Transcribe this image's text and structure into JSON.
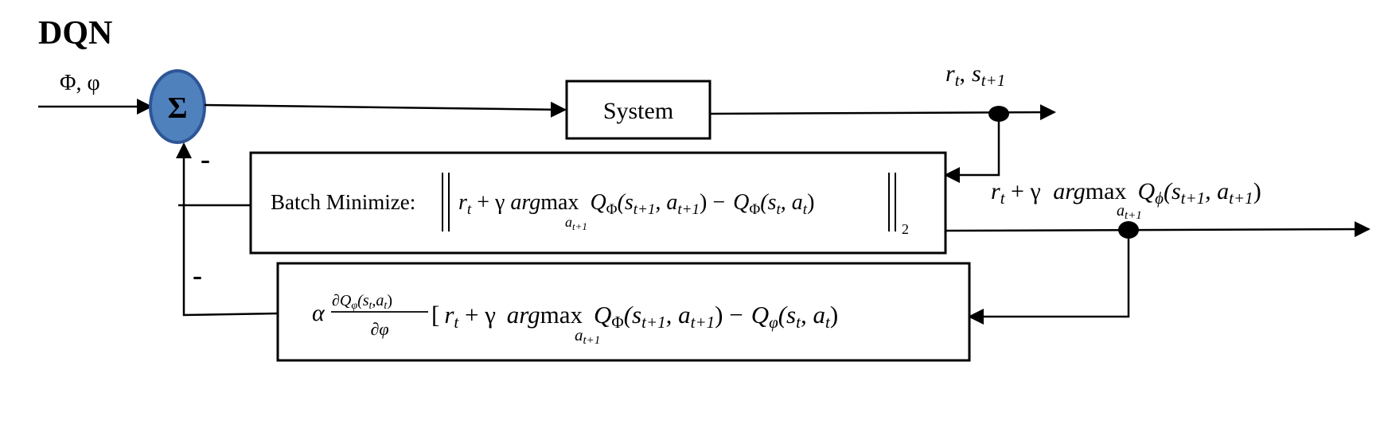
{
  "title": "DQN",
  "inputs": {
    "label": "Φ, φ"
  },
  "summer": {
    "symbol": "Σ",
    "fill": "#4f81bd",
    "stroke": "#2f5597"
  },
  "signs": {
    "batch": "-",
    "grad": "-"
  },
  "system": {
    "label": "System"
  },
  "output_top": {
    "r": "r",
    "t": "t",
    "s": "s",
    "t1": "t+1",
    "comma": ","
  },
  "target": {
    "r": "r",
    "t": "t",
    "plus_gamma": " + γ ",
    "argmax": "arg",
    "max": "max",
    "a": "a",
    "a_sub": "t+1",
    "q": "Q",
    "q_sub": "ϕ",
    "args": "(s",
    "args_sub1": "t+1",
    "args_mid": ", a",
    "args_sub2": "t+1",
    "close": ")"
  },
  "batch": {
    "label": "Batch Minimize:",
    "r": "r",
    "t": "t",
    "plus_gamma": " + γ ",
    "argmax": "arg",
    "max": "max",
    "a": "a",
    "a_sub": "t+1",
    "q1": "Q",
    "q1_sub": "Φ",
    "p1": "(s",
    "p1_sub": "t+1",
    "p1_mid": ", a",
    "p1_sub2": "t+1",
    "p1_close": ") −",
    "q2": "Q",
    "q2_sub": "Φ",
    "p2": "(s",
    "p2_sub": "t",
    "p2_mid": ", a",
    "p2_sub2": "t",
    "p2_close": ")",
    "norm_sub": "2"
  },
  "grad": {
    "alpha": "α",
    "num": "∂Q",
    "num_sub": "φ",
    "num_args": "(s",
    "num_args_sub1": "t",
    "num_args_mid": ",a",
    "num_args_sub2": "t",
    "num_close": ")",
    "den": "∂φ",
    "bracket": "[",
    "r": "r",
    "t": "t",
    "plus_gamma": " + γ ",
    "argmax": "arg",
    "max": "max",
    "a": "a",
    "a_sub": "t+1",
    "q1": "Q",
    "q1_sub": "Φ",
    "p1": "(s",
    "p1_sub": "t+1",
    "p1_mid": ", a",
    "p1_sub2": "t+1",
    "p1_close": ") −",
    "q2": "Q",
    "q2_sub": "φ",
    "p2": "(s",
    "p2_sub": "t",
    "p2_mid": ", a",
    "p2_sub2": "t",
    "p2_close": ")"
  }
}
